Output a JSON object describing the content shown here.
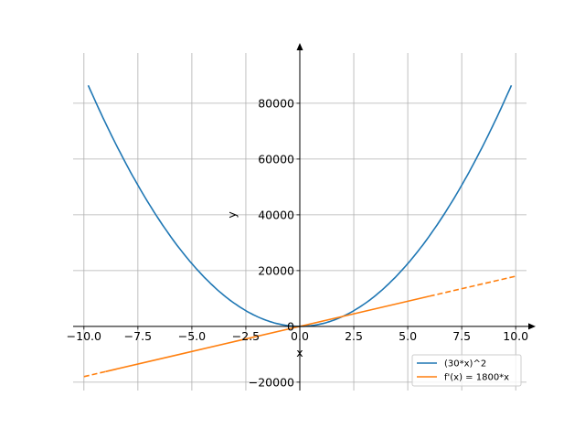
{
  "chart_data": {
    "type": "line",
    "title": "",
    "xlabel": "x",
    "ylabel": "y",
    "xlim": [
      -10.5,
      10.5
    ],
    "ylim": [
      -23000,
      98000
    ],
    "grid": true,
    "legend_position": "lower-right",
    "x_ticks": [
      -10.0,
      -7.5,
      -5.0,
      -2.5,
      0.0,
      2.5,
      5.0,
      7.5,
      10.0
    ],
    "x_tick_labels": [
      "−10.0",
      "−7.5",
      "−5.0",
      "−2.5",
      "0.0",
      "2.5",
      "5.0",
      "7.5",
      "10.0"
    ],
    "y_ticks": [
      -20000,
      0,
      20000,
      40000,
      60000,
      80000
    ],
    "y_tick_labels": [
      "−20000",
      "0",
      "20000",
      "40000",
      "60000",
      "80000"
    ],
    "series": [
      {
        "name": "(30*x)^2",
        "color": "#1f77b4",
        "style": "solid",
        "x": [
          -9.8,
          -9.0,
          -8.0,
          -7.0,
          -6.0,
          -5.0,
          -4.0,
          -3.0,
          -2.0,
          -1.0,
          0.0,
          1.0,
          2.0,
          3.0,
          4.0,
          5.0,
          6.0,
          7.0,
          8.0,
          9.0,
          9.8
        ],
        "y": [
          86436,
          72900,
          57600,
          44100,
          32400,
          22500,
          14400,
          8100,
          3600,
          900,
          0,
          900,
          3600,
          8100,
          14400,
          22500,
          32400,
          44100,
          57600,
          72900,
          86436
        ]
      },
      {
        "name": "f'(x) = 1800*x",
        "color": "#ff7f0e",
        "style": "solid-dashed-ends",
        "x": [
          -10.0,
          -9.0,
          -6.0,
          -3.0,
          0.0,
          3.0,
          6.0,
          7.0,
          10.0
        ],
        "y": [
          -18000,
          -16200,
          -10800,
          -5400,
          0,
          5400,
          10800,
          12600,
          18000
        ]
      }
    ]
  }
}
